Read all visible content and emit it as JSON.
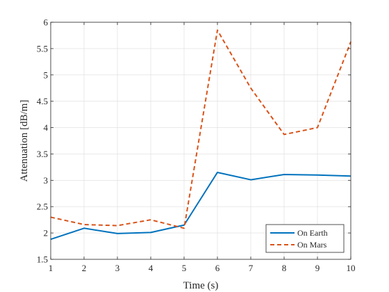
{
  "chart_data": {
    "type": "line",
    "title": "",
    "xlabel": "Time (s)",
    "ylabel": "Attenuation [dB/m]",
    "x": [
      1,
      2,
      3,
      4,
      5,
      6,
      7,
      8,
      9,
      10
    ],
    "xlim": [
      1,
      10
    ],
    "ylim": [
      1.5,
      6
    ],
    "xticks": [
      "1",
      "2",
      "3",
      "4",
      "5",
      "6",
      "7",
      "8",
      "9",
      "10"
    ],
    "yticks": [
      "1.5",
      "2",
      "2.5",
      "3",
      "3.5",
      "4",
      "4.5",
      "5",
      "5.5",
      "6"
    ],
    "grid": true,
    "legend_position": "bottom-right",
    "series": [
      {
        "name": "On Earth",
        "color": "#0072BD",
        "style": "solid",
        "values": [
          1.88,
          2.09,
          1.99,
          2.01,
          2.15,
          3.15,
          3.01,
          3.11,
          3.1,
          3.08
        ]
      },
      {
        "name": "On Mars",
        "color": "#D95319",
        "style": "dashed",
        "values": [
          2.3,
          2.16,
          2.14,
          2.25,
          2.09,
          5.85,
          4.75,
          3.87,
          4.0,
          5.63
        ]
      }
    ]
  }
}
